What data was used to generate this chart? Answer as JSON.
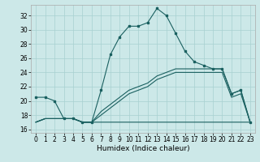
{
  "title": "",
  "xlabel": "Humidex (Indice chaleur)",
  "bg_color": "#cce8e8",
  "line_color": "#1a6060",
  "grid_color": "#a8d0d0",
  "xlim": [
    -0.5,
    23.5
  ],
  "ylim": [
    15.5,
    33.5
  ],
  "yticks": [
    16,
    18,
    20,
    22,
    24,
    26,
    28,
    30,
    32
  ],
  "xticks": [
    0,
    1,
    2,
    3,
    4,
    5,
    6,
    7,
    8,
    9,
    10,
    11,
    12,
    13,
    14,
    15,
    16,
    17,
    18,
    19,
    20,
    21,
    22,
    23
  ],
  "series1": [
    20.5,
    20.5,
    20.0,
    17.5,
    17.5,
    17.0,
    17.0,
    21.5,
    26.5,
    29.0,
    30.5,
    30.5,
    31.0,
    33.0,
    32.0,
    29.5,
    27.0,
    25.5,
    25.0,
    24.5,
    24.5,
    21.0,
    21.5,
    17.0
  ],
  "series2": [
    17.0,
    17.5,
    17.5,
    17.5,
    17.5,
    17.0,
    17.0,
    17.0,
    17.0,
    17.0,
    17.0,
    17.0,
    17.0,
    17.0,
    17.0,
    17.0,
    17.0,
    17.0,
    17.0,
    17.0,
    17.0,
    17.0,
    17.0,
    17.0
  ],
  "series3": [
    17.0,
    17.5,
    17.5,
    17.5,
    17.5,
    17.0,
    17.0,
    18.5,
    19.5,
    20.5,
    21.5,
    22.0,
    22.5,
    23.5,
    24.0,
    24.5,
    24.5,
    24.5,
    24.5,
    24.5,
    24.5,
    21.0,
    21.5,
    17.0
  ],
  "series4": [
    17.0,
    17.5,
    17.5,
    17.5,
    17.5,
    17.0,
    17.0,
    18.0,
    19.0,
    20.0,
    21.0,
    21.5,
    22.0,
    23.0,
    23.5,
    24.0,
    24.0,
    24.0,
    24.0,
    24.0,
    24.0,
    20.5,
    21.0,
    17.0
  ],
  "marker_size": 2.0,
  "line_width": 0.8,
  "tick_fontsize": 5.5,
  "xlabel_fontsize": 6.5
}
